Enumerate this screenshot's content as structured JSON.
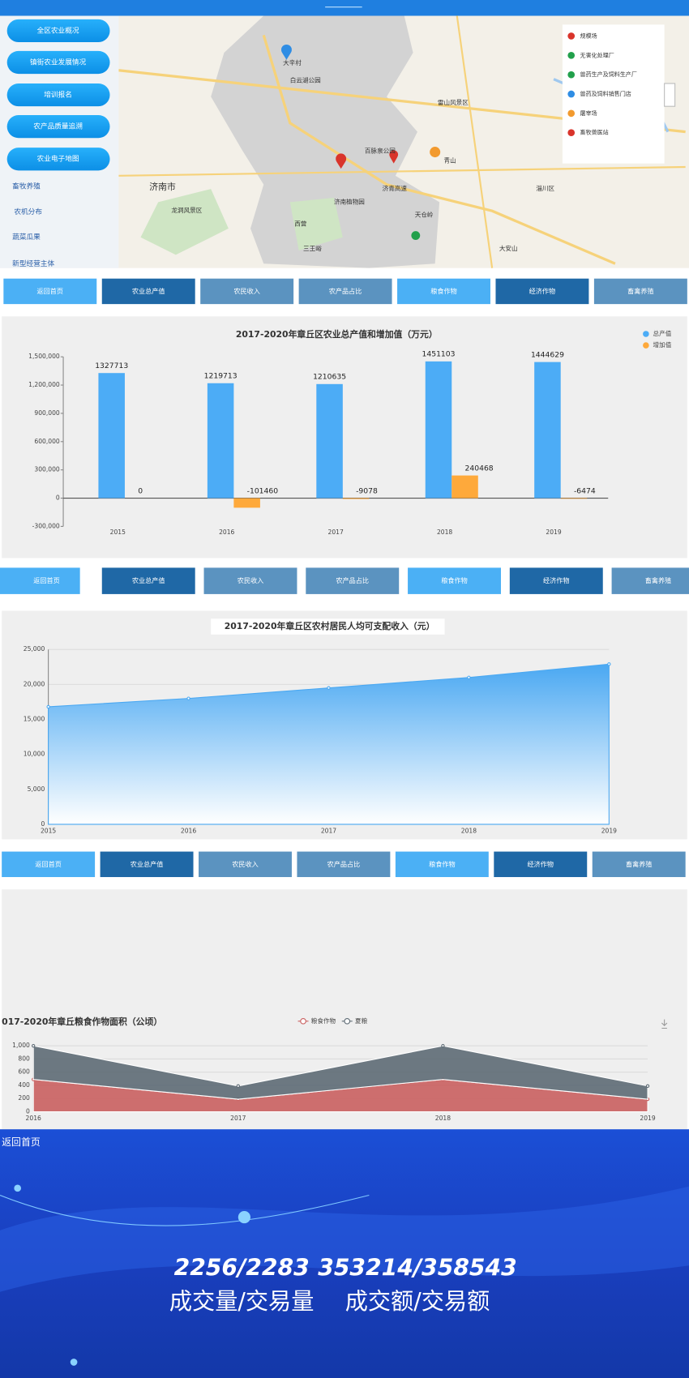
{
  "menu": [
    "全区农业概况",
    "镇街农业发展情况",
    "培训报名",
    "农产品质量追溯",
    "农业电子地图"
  ],
  "map": {
    "labels": [
      "济南市",
      "大辛村",
      "百脉泉公园",
      "龙洞风景区",
      "济南植物园",
      "三王峪",
      "西营",
      "天仓岭",
      "青山",
      "雷山风景区",
      "大安山",
      "淄川区",
      "济青高速",
      "白云湖公园"
    ],
    "side_labels": [
      "畜牧养殖",
      "农机分布",
      "蔬菜瓜果",
      "新型经营主体"
    ],
    "legend": [
      {
        "name": "规模场",
        "color": "#d9342b"
      },
      {
        "name": "无害化处理厂",
        "color": "#22a04b"
      },
      {
        "name": "兽药生产及饲料生产厂",
        "color": "#22a04b"
      },
      {
        "name": "兽药及饲料销售门店",
        "color": "#2f8de4"
      },
      {
        "name": "屠宰场",
        "color": "#f29a2e"
      },
      {
        "name": "畜牧兽医站",
        "color": "#d9342b"
      }
    ]
  },
  "nav": [
    "返回首页",
    "农业总产值",
    "农民收入",
    "农产品占比",
    "粮食作物",
    "经济作物",
    "畜禽养殖"
  ],
  "chart_data": [
    {
      "type": "bar",
      "title": "2017-2020年章丘区农业总产值和增加值（万元）",
      "categories": [
        "2015",
        "2016",
        "2017",
        "2018",
        "2019"
      ],
      "series": [
        {
          "name": "总产值",
          "color": "#4cacf6",
          "values": [
            1327713,
            1219713,
            1210635,
            1451103,
            1444629
          ]
        },
        {
          "name": "增加值",
          "color": "#fea93b",
          "values": [
            0,
            -101460,
            -9078,
            240468,
            -6474
          ]
        }
      ],
      "ylim": [
        -300000,
        1500000
      ],
      "yticks": [
        {
          "value": -300000,
          "label": "-300,000"
        },
        0,
        {
          "value": 300000,
          "label": "300,000"
        },
        {
          "value": 600000,
          "label": "600,000"
        },
        {
          "value": 900000,
          "label": "900,000"
        },
        {
          "value": 1200000,
          "label": "1,200,000"
        },
        {
          "value": 1500000,
          "label": "1,500,000"
        }
      ],
      "grid": false,
      "legend": "top-right"
    },
    {
      "type": "area",
      "title": "2017-2020年章丘区农村居民人均可支配收入（元）",
      "categories": [
        "2015",
        "2016",
        "2017",
        "2018",
        "2019"
      ],
      "values": [
        16800,
        18000,
        19500,
        21000,
        22900
      ],
      "color": "#4aa8f2",
      "ylim": [
        0,
        25000
      ],
      "yticks": [
        0,
        {
          "value": 5000,
          "label": "5,000"
        },
        {
          "value": 10000,
          "label": "10,000"
        },
        {
          "value": 15000,
          "label": "15,000"
        },
        {
          "value": 20000,
          "label": "20,000"
        },
        {
          "value": 25000,
          "label": "25,000"
        }
      ],
      "grid": true
    },
    {
      "type": "area",
      "title": "017-2020年章丘粮食作物面积（公顷）",
      "categories": [
        "2016",
        "2017",
        "2018",
        "2019"
      ],
      "series": [
        {
          "name": "粮食作物",
          "color": "#c95f5f",
          "values": [
            490,
            190,
            490,
            190
          ]
        },
        {
          "name": "夏粮",
          "color": "#5d6a74",
          "values": [
            510,
            200,
            510,
            200
          ]
        }
      ],
      "stacked": true,
      "ylim": [
        0,
        1000
      ],
      "yticks": [
        0,
        200,
        400,
        600,
        800,
        {
          "value": 1000,
          "label": "1,000"
        }
      ],
      "grid": true,
      "legend": "top"
    }
  ],
  "footer": {
    "back": "返回首页",
    "stats": [
      "2256/2283",
      "353214/358543"
    ],
    "captions": [
      "成交量/交易量",
      "成交额/交易额"
    ]
  }
}
